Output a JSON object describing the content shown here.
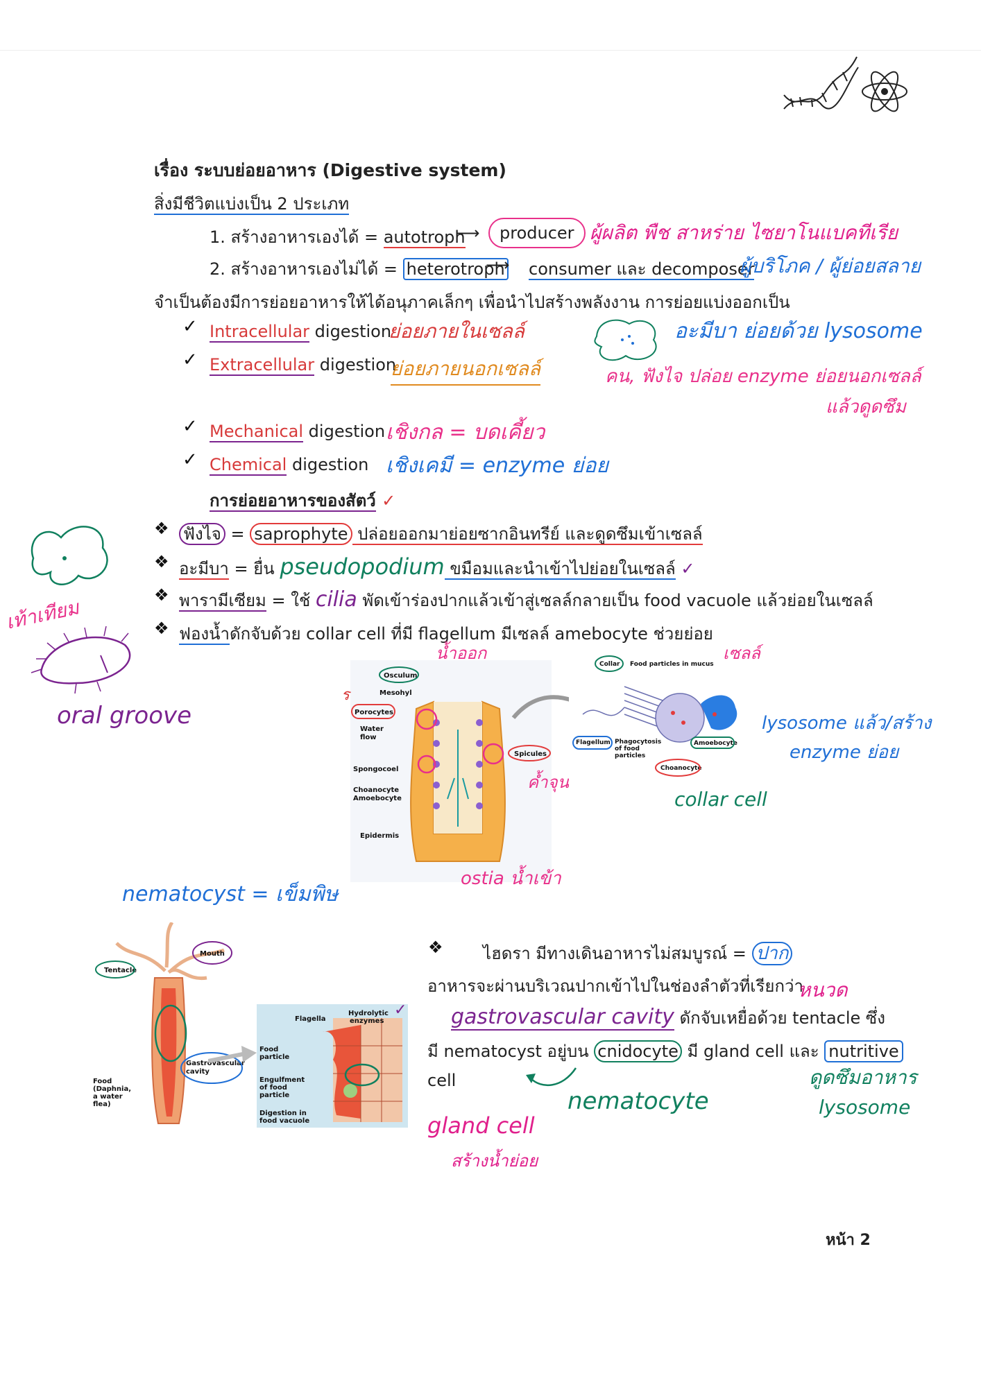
{
  "title": "เรื่อง ระบบย่อยอาหาร (Digestive system)",
  "intro": "สิ่งมีชีวิตแบ่งเป็น 2 ประเภท",
  "types": [
    {
      "num": "1.",
      "text": "สร้างอาหารเองได้ = ",
      "term": "autotroph",
      "target": "producer",
      "note": "ผู้ผลิต พืช สาหร่าย ไซยาโนแบคทีเรีย"
    },
    {
      "num": "2.",
      "text": "สร้างอาหารเองไม่ได้ = ",
      "term": "heterotroph",
      "target": "consumer และ decomposer",
      "note": "ผู้บริโภค / ผู้ย่อยสลาย"
    }
  ],
  "need_line": "จำเป็นต้องมีการย่อยอาหารให้ได้อนุภาคเล็กๆ เพื่อนำไปสร้างพลังงาน การย่อยแบ่งออกเป็น",
  "digestion_types": [
    {
      "word": "Intracellular",
      "rest": " digestion",
      "note": "ย่อยภายในเซลล์"
    },
    {
      "word": "Extracellular",
      "rest": " digestion",
      "note": "ย่อยภายนอกเซลล์"
    },
    {
      "word": "Mechanical",
      "rest": " digestion",
      "note": "เชิงกล = บดเคี้ยว"
    },
    {
      "word": "Chemical",
      "rest": " digestion",
      "note": "เชิงเคมี = enzyme ย่อย"
    }
  ],
  "amoeba_note": "อะมีบา ย่อยด้วย lysosome",
  "extra_note_1": "คน, ฟังไจ ปล่อย enzyme ย่อยนอกเซลล์",
  "extra_note_2": "แล้วดูดซึม",
  "animal_heading": "การย่อยอาหารของสัตว์",
  "bullets": {
    "fungi": {
      "a": "ฟังไจ",
      "b": " = ",
      "c": "saprophyte",
      "d": " ปล่อยออกมาย่อยซากอินทรีย์ และดูดซึมเข้าเซลล์"
    },
    "amoeba": {
      "a": "อะมีบา",
      "b": " = ยื่น ",
      "c": "pseudopodium",
      "d": " ขมือมและนำเข้าไปย่อยในเซลล์"
    },
    "paramecium": {
      "a": "พารามีเซียม",
      "b": " = ใช้ ",
      "c": "cilia",
      "d": " พัดเข้าร่องปากแล้วเข้าสู่เซลล์กลายเป็น food vacuole แล้วย่อยในเซลล์"
    },
    "sponge": {
      "a": "ฟองน้ำ",
      "d": "ดักจับด้วย collar cell ที่มี flagellum มีเซลล์ amebocyte ช่วยย่อย"
    }
  },
  "left_notes": {
    "pseudo": "เท้าเทียม",
    "groove": "oral groove"
  },
  "sponge_fig": {
    "labels": [
      "Osculum",
      "Mesohyl",
      "Porocytes",
      "Water flow",
      "Spongocoel",
      "Choanocyte",
      "Amoebocyte",
      "Epidermis",
      "Spicules"
    ],
    "annot_top": "น้ำออก",
    "annot_spicules": "ค้ำจุน",
    "annot_ostia": "ostia น้ำเข้า"
  },
  "collar_fig": {
    "labels": [
      "Collar",
      "Food particles in mucus",
      "Flagellum",
      "Phagocytosis of food particles",
      "Amoebocyte",
      "Choanocyte"
    ],
    "annot_cell": "เซลล์",
    "annot_lysosome": "lysosome แล้ว/สร้าง",
    "annot_enzyme": "enzyme ย่อย",
    "annot_collar": "collar cell"
  },
  "nematocyst_note": "nematocyst = เข็มพิษ",
  "hydra_fig": {
    "labels": [
      "Tentacle",
      "Mouth",
      "Food (Daphnia, a water flea)",
      "Gastrovascular cavity"
    ],
    "detail_labels": [
      "Flagella",
      "Hydrolytic enzymes",
      "Food particle",
      "Engulfment of food particle",
      "Digestion in food vacuole"
    ]
  },
  "hydra_text": {
    "line1": "ไฮดรา มีทางเดินอาหารไม่สมบูรณ์ = ",
    "line1_note": "ปาก",
    "line2": "อาหารจะผ่านบริเวณปากเข้าไปในช่องลำตัวที่เรียกว่า",
    "cavity": "gastrovascular cavity",
    "line3": " ดักจับเหยื่อด้วย tentacle ซึ่ง",
    "line4a": "มี nematocyst อยู่บน ",
    "line4b": "cnidocyte",
    "line4c": " มี gland cell และ ",
    "line4d": "nutritive",
    "line5": "cell"
  },
  "hydra_notes": {
    "anus": "หนวด",
    "absorb": "ดูดซึมอาหาร",
    "lysosome": "lysosome",
    "nemato": "nematocyte",
    "gland": "gland cell",
    "gland2": "สร้างน้ำย่อย"
  },
  "page_number": "หน้า 2"
}
